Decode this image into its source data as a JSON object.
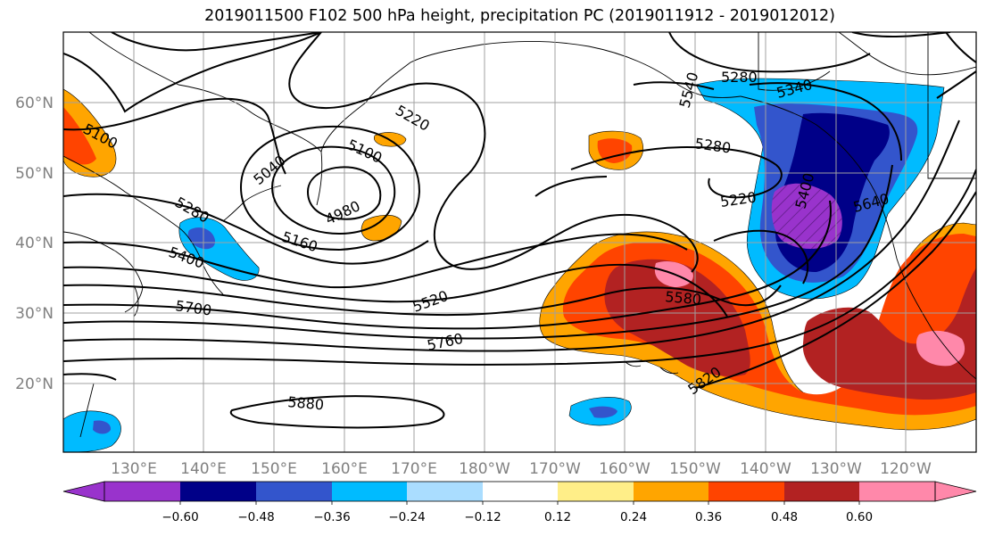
{
  "title": "2019011500 F102 500 hPa height, precipitation PC (2019011912 - 2019012012)",
  "map": {
    "lat_labels": [
      "60°N",
      "50°N",
      "40°N",
      "30°N",
      "20°N"
    ],
    "lon_labels": [
      "130°E",
      "140°E",
      "150°E",
      "160°E",
      "170°E",
      "180°W",
      "170°W",
      "160°W",
      "150°W",
      "140°W",
      "130°W",
      "120°W"
    ],
    "contour_labels": [
      "5100",
      "5220",
      "5100",
      "5040",
      "4980",
      "5160",
      "5280",
      "5400",
      "5280",
      "5340",
      "5540",
      "5280",
      "5220",
      "5400",
      "5640",
      "5520",
      "5580",
      "5700",
      "5760",
      "5820",
      "5880"
    ]
  },
  "colorbar": {
    "ticks": [
      "−0.60",
      "−0.48",
      "−0.36",
      "−0.24",
      "−0.12",
      "0.12",
      "0.24",
      "0.36",
      "0.48",
      "0.60"
    ],
    "colors": [
      "#9933cc",
      "#000088",
      "#3355cc",
      "#00bbff",
      "#aaddff",
      "#ffffff",
      "#ffee88",
      "#ffa500",
      "#ff4400",
      "#b22222",
      "#ff88aa"
    ]
  }
}
